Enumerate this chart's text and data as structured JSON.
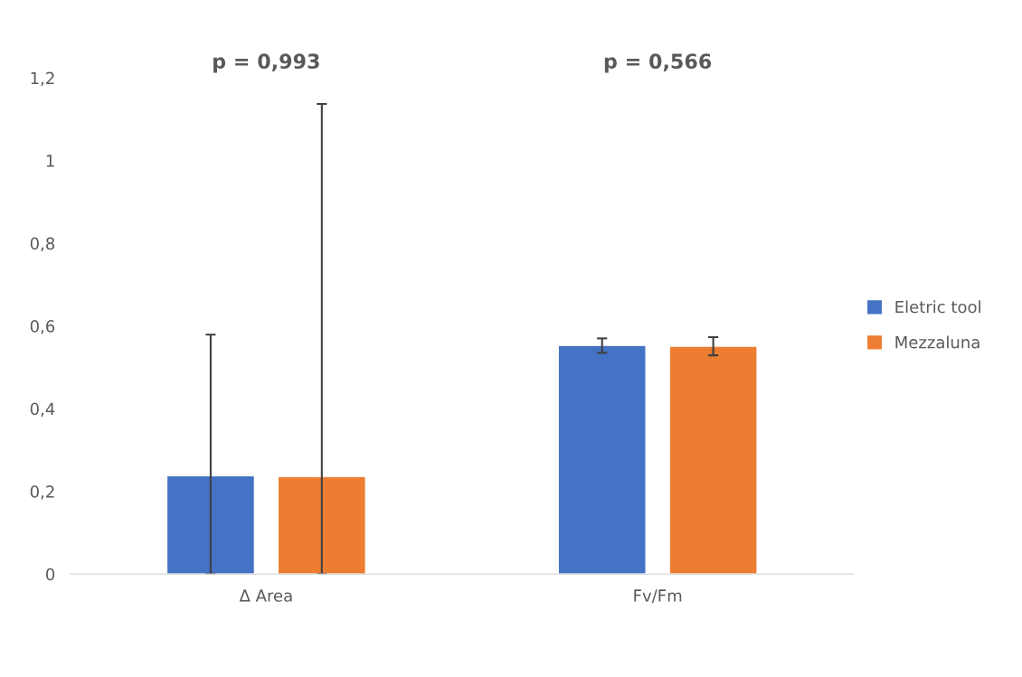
{
  "chart_data": {
    "type": "bar",
    "categories": [
      "Δ Area",
      "Fv/Fm"
    ],
    "series": [
      {
        "name": "Eletric tool",
        "color": "#4472c4",
        "values": [
          0.238,
          0.553
        ],
        "errors": [
          [
            0,
            0.579
          ],
          [
            0.535,
            0.57
          ]
        ]
      },
      {
        "name": "Mezzaluna",
        "color": "#ed7d31",
        "values": [
          0.236,
          0.551
        ],
        "errors": [
          [
            0,
            1.137
          ],
          [
            0.529,
            0.573
          ]
        ]
      }
    ],
    "ylim": [
      0,
      1.2
    ],
    "yticks": [
      0,
      {
        "value": 0.2,
        "label": "0,2"
      },
      {
        "value": 0.4,
        "label": "0,4"
      },
      {
        "value": 0.6,
        "label": "0,6"
      },
      {
        "value": 0.8,
        "label": "0,8"
      },
      1,
      {
        "value": 1.2,
        "label": "1,2"
      }
    ],
    "annotations": [
      "p = 0,993",
      "p = 0,566"
    ],
    "grid": false,
    "legend": "right"
  }
}
